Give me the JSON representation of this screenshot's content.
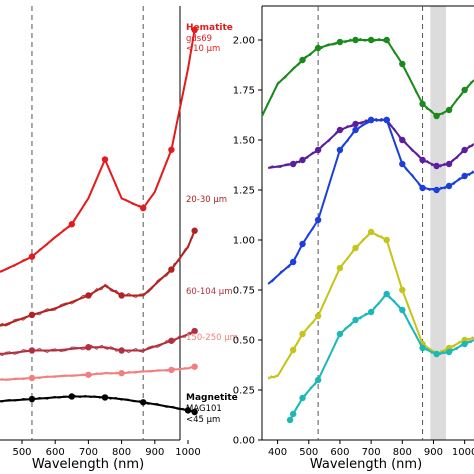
{
  "chart_data": [
    {
      "type": "line",
      "panel": "left",
      "xlabel": "Wavelength (nm)",
      "xlim": [
        400,
        1050
      ],
      "xticks": [
        500,
        600,
        700,
        800,
        900,
        1000
      ],
      "dashed_lines_x": [
        530,
        865
      ],
      "labels": [
        {
          "text": "Hematite",
          "color": "#e41a1c",
          "bold": true
        },
        {
          "text": "gds69",
          "color": "#e41a1c"
        },
        {
          "text": "<10 μm",
          "color": "#e41a1c"
        },
        {
          "text": "20-30 μm",
          "color": "#b22222"
        },
        {
          "text": "60-104 μm",
          "color": "#b03040"
        },
        {
          "text": "150-250 μm",
          "color": "#f08080"
        },
        {
          "text": "Magnetite",
          "color": "#000000",
          "bold": true
        },
        {
          "text": "MAG101",
          "color": "#000000"
        },
        {
          "text": "<45 μm",
          "color": "#000000"
        }
      ],
      "series": [
        {
          "color": "#e41a1c",
          "x": [
            400,
            450,
            530,
            600,
            650,
            700,
            750,
            800,
            865,
            900,
            950,
            1000,
            1020
          ],
          "y": [
            0.36,
            0.38,
            0.42,
            0.48,
            0.52,
            0.6,
            0.72,
            0.6,
            0.57,
            0.62,
            0.75,
            1.0,
            1.12
          ]
        },
        {
          "color": "#b22222",
          "x": [
            400,
            450,
            530,
            600,
            700,
            750,
            800,
            865,
            950,
            1000,
            1020
          ],
          "y": [
            0.2,
            0.21,
            0.24,
            0.26,
            0.3,
            0.33,
            0.3,
            0.3,
            0.38,
            0.45,
            0.5
          ]
        },
        {
          "color": "#b03040",
          "x": [
            400,
            450,
            530,
            600,
            700,
            750,
            800,
            865,
            950,
            1000,
            1020
          ],
          "y": [
            0.12,
            0.12,
            0.13,
            0.13,
            0.14,
            0.14,
            0.13,
            0.13,
            0.16,
            0.18,
            0.19
          ]
        },
        {
          "color": "#f08080",
          "x": [
            400,
            450,
            530,
            600,
            700,
            750,
            800,
            865,
            950,
            1000,
            1020
          ],
          "y": [
            0.04,
            0.04,
            0.045,
            0.05,
            0.055,
            0.06,
            0.06,
            0.065,
            0.07,
            0.075,
            0.08
          ]
        },
        {
          "color": "#000000",
          "x": [
            400,
            450,
            530,
            600,
            650,
            700,
            750,
            800,
            865,
            950,
            1000,
            1020
          ],
          "y": [
            -0.03,
            -0.025,
            -0.02,
            -0.015,
            -0.012,
            -0.012,
            -0.015,
            -0.02,
            -0.03,
            -0.045,
            -0.055,
            -0.06
          ]
        }
      ]
    },
    {
      "type": "line",
      "panel": "right",
      "xlabel": "Wavelength (nm)",
      "xlim": [
        350,
        1030
      ],
      "ylim": [
        0.0,
        2.25
      ],
      "xticks": [
        400,
        500,
        600,
        700,
        800,
        900,
        1000
      ],
      "yticks": [
        "0.00",
        "0.25",
        "0.50",
        "0.75",
        "1.00",
        "1.25",
        "1.50",
        "1.75",
        "2.00"
      ],
      "dashed_lines_x": [
        530,
        865
      ],
      "shaded_band_x": [
        890,
        940
      ],
      "series": [
        {
          "color": "#1a8a1a",
          "x": [
            350,
            400,
            480,
            530,
            600,
            650,
            700,
            750,
            800,
            865,
            910,
            950,
            1000,
            1030
          ],
          "y": [
            1.62,
            1.78,
            1.9,
            1.96,
            1.99,
            2.0,
            2.0,
            2.0,
            1.88,
            1.68,
            1.62,
            1.65,
            1.75,
            1.8
          ]
        },
        {
          "color": "#5a1e9e",
          "x": [
            370,
            450,
            480,
            530,
            600,
            650,
            700,
            750,
            800,
            865,
            910,
            950,
            1000,
            1030
          ],
          "y": [
            1.36,
            1.38,
            1.4,
            1.45,
            1.55,
            1.58,
            1.6,
            1.6,
            1.5,
            1.4,
            1.37,
            1.38,
            1.45,
            1.48
          ]
        },
        {
          "color": "#1c3fdc",
          "x": [
            370,
            450,
            480,
            530,
            600,
            650,
            700,
            750,
            800,
            865,
            910,
            950,
            1000,
            1030
          ],
          "y": [
            0.78,
            0.89,
            0.98,
            1.1,
            1.45,
            1.55,
            1.6,
            1.6,
            1.38,
            1.26,
            1.25,
            1.27,
            1.32,
            1.34
          ]
        },
        {
          "color": "#c4c41a",
          "x": [
            370,
            400,
            450,
            480,
            530,
            600,
            650,
            700,
            750,
            800,
            865,
            910,
            950,
            1000,
            1030
          ],
          "y": [
            0.31,
            0.32,
            0.45,
            0.53,
            0.62,
            0.86,
            0.96,
            1.04,
            1.0,
            0.75,
            0.48,
            0.43,
            0.46,
            0.5,
            0.51
          ]
        },
        {
          "color": "#1cb8b8",
          "x": [
            440,
            450,
            480,
            530,
            600,
            650,
            700,
            750,
            800,
            865,
            910,
            950,
            1000,
            1030
          ],
          "y": [
            0.1,
            0.13,
            0.21,
            0.3,
            0.53,
            0.6,
            0.64,
            0.73,
            0.65,
            0.46,
            0.43,
            0.44,
            0.48,
            0.5
          ]
        }
      ]
    }
  ]
}
